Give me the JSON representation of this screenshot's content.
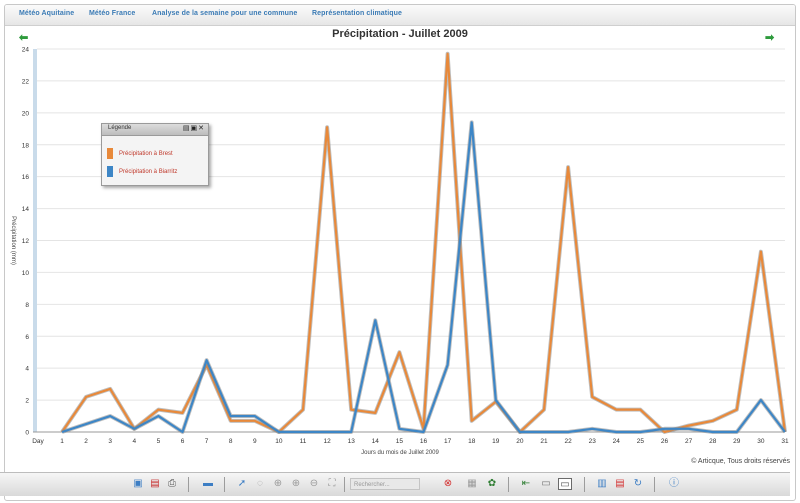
{
  "menu": {
    "items": [
      "Météo Aquitaine",
      "Météo France",
      "Analyse de la semaine pour une commune",
      "Représentation climatique"
    ]
  },
  "nav": {
    "prev_icon": "⬅",
    "next_icon": "➡"
  },
  "legend": {
    "title": "Légende",
    "buttons": "▤▣✕"
  },
  "copyright": "© Articque, Tous droits réservés",
  "toolbar": {
    "search_placeholder": "Rechercher...",
    "icons": [
      "save-icon",
      "pdf-icon",
      "print-icon",
      "screen-icon",
      "pointer-icon",
      "lasso-icon",
      "zoom-icon",
      "zoom-in-icon",
      "zoom-out-icon",
      "fit-icon",
      "clear-icon",
      "copy-icon",
      "settings-icon",
      "export-icon",
      "window-icon",
      "layout-icon",
      "bar-chart-icon",
      "table-icon",
      "refresh-icon",
      "info-icon"
    ]
  },
  "colors": {
    "brest": "#e8893a",
    "biarritz": "#3d86c6",
    "accent": "#3b7bb5"
  },
  "chart_data": {
    "type": "line",
    "title": "Précipitation - Juillet 2009",
    "xlabel": "Jours du mois de Juillet 2009",
    "ylabel": "Précipitation (mm)",
    "x_first_label": "Day",
    "x": [
      1,
      2,
      3,
      4,
      5,
      6,
      7,
      8,
      9,
      10,
      11,
      12,
      13,
      14,
      15,
      16,
      17,
      18,
      19,
      20,
      21,
      22,
      23,
      24,
      25,
      26,
      27,
      28,
      29,
      30,
      31
    ],
    "ylim": [
      0,
      24
    ],
    "yticks": [
      0,
      2,
      4,
      6,
      8,
      10,
      12,
      14,
      16,
      18,
      20,
      22,
      24
    ],
    "grid": true,
    "legend_position": "top-left",
    "series": [
      {
        "name": "Précipitation à Brest",
        "color": "#e8893a",
        "values": [
          0,
          2.2,
          2.7,
          0.2,
          1.4,
          1.2,
          4.2,
          0.7,
          0.7,
          0,
          1.4,
          19.1,
          1.4,
          1.2,
          5.0,
          0.2,
          23.7,
          0.7,
          1.9,
          0,
          1.4,
          16.6,
          2.2,
          1.4,
          1.4,
          0,
          0.4,
          0.7,
          1.4,
          11.3,
          0
        ]
      },
      {
        "name": "Précipitation à Biarritz",
        "color": "#3d86c6",
        "values": [
          0,
          0.5,
          1.0,
          0.2,
          1.0,
          0,
          4.5,
          1.0,
          1.0,
          0,
          0,
          0,
          0,
          7.0,
          0.2,
          0,
          4.2,
          19.4,
          2.0,
          0,
          0,
          0,
          0.2,
          0,
          0,
          0.2,
          0.2,
          0,
          0,
          2.0,
          0
        ]
      }
    ]
  }
}
